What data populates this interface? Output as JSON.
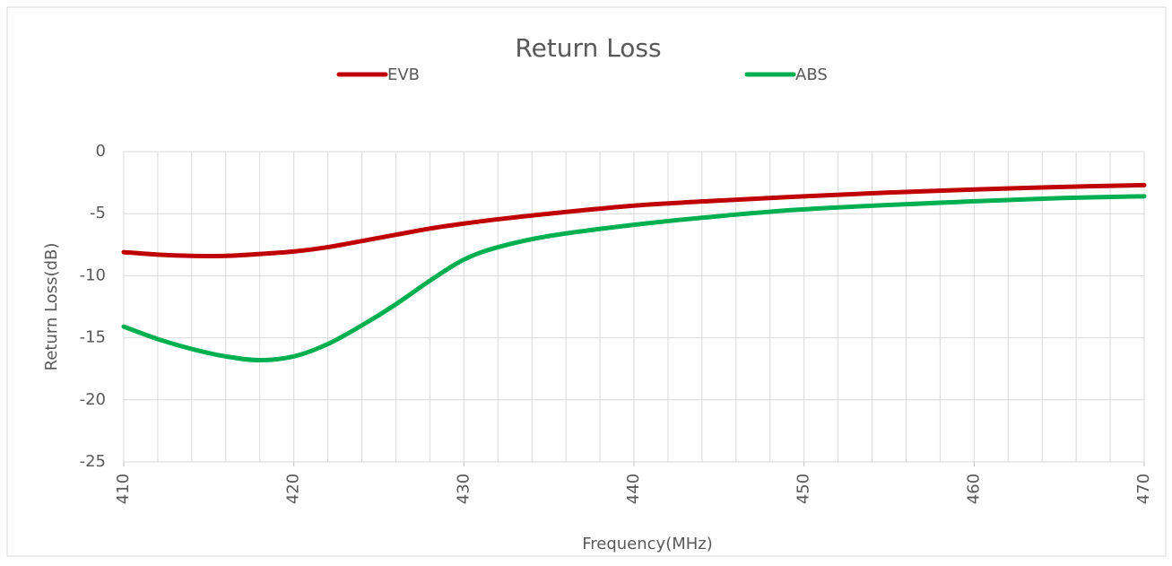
{
  "chart_data": {
    "type": "line",
    "title": "Return Loss",
    "xlabel": "Frequency(MHz)",
    "ylabel": "Return Loss(dB)",
    "x": [
      410,
      412,
      414,
      416,
      418,
      420,
      422,
      424,
      426,
      428,
      430,
      432,
      435,
      440,
      445,
      450,
      455,
      460,
      465,
      470
    ],
    "series": [
      {
        "name": "EVB",
        "color": "#c00000",
        "values": [
          -8.1,
          -8.3,
          -8.4,
          -8.4,
          -8.25,
          -8.05,
          -7.7,
          -7.2,
          -6.7,
          -6.2,
          -5.8,
          -5.45,
          -5.0,
          -4.35,
          -3.95,
          -3.6,
          -3.3,
          -3.05,
          -2.85,
          -2.7
        ]
      },
      {
        "name": "ABS",
        "color": "#00b050",
        "values": [
          -14.1,
          -15.1,
          -15.9,
          -16.5,
          -16.8,
          -16.5,
          -15.5,
          -14.0,
          -12.3,
          -10.4,
          -8.7,
          -7.7,
          -6.8,
          -5.9,
          -5.2,
          -4.65,
          -4.3,
          -4.0,
          -3.75,
          -3.6
        ]
      }
    ],
    "xlim": [
      410,
      470
    ],
    "xticks": [
      410,
      420,
      430,
      440,
      450,
      460,
      470
    ],
    "xgrid": [
      410,
      412,
      414,
      416,
      418,
      420,
      422,
      424,
      426,
      428,
      430,
      432,
      434,
      436,
      438,
      440,
      442,
      444,
      446,
      448,
      450,
      452,
      454,
      456,
      458,
      460,
      462,
      464,
      466,
      468,
      470
    ],
    "ylim": [
      -25,
      0
    ],
    "yticks": [
      -25,
      -20,
      -15,
      -10,
      -5,
      0
    ],
    "grid": true,
    "legend": "top"
  }
}
